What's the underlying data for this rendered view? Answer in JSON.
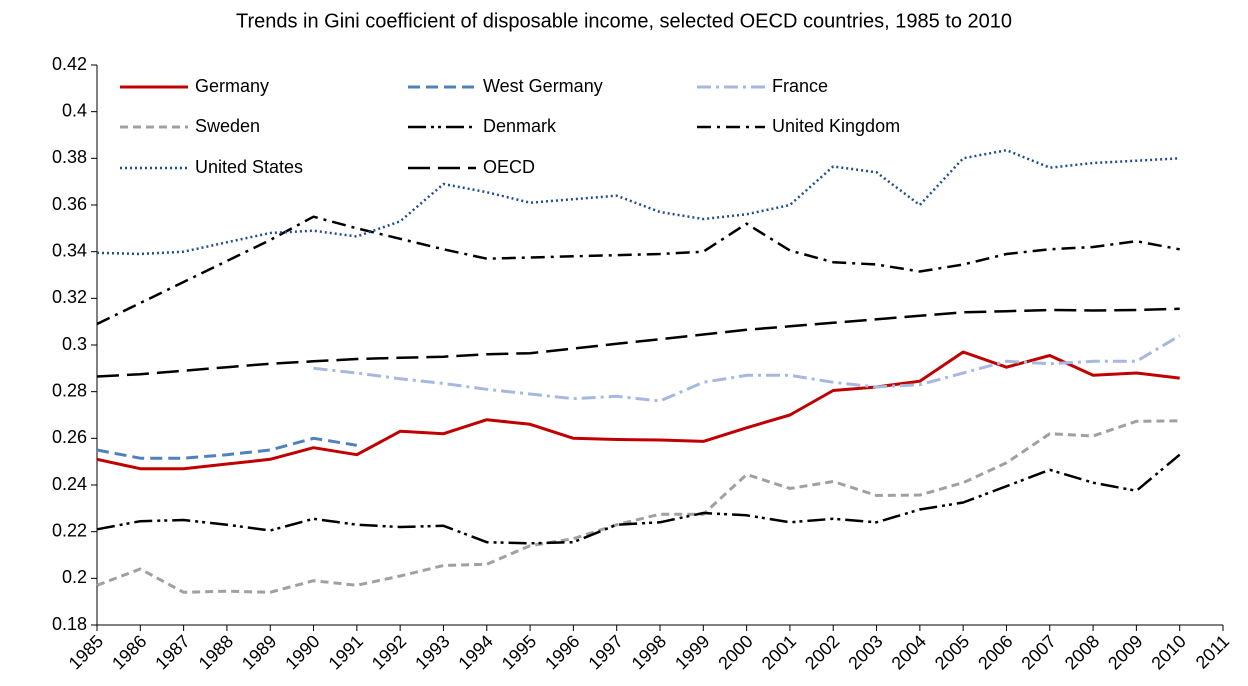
{
  "chart_data": {
    "type": "line",
    "title": "Trends in Gini coefficient of disposable income, selected OECD countries, 1985 to 2010",
    "x": [
      1985,
      1986,
      1987,
      1988,
      1989,
      1990,
      1991,
      1992,
      1993,
      1994,
      1995,
      1996,
      1997,
      1998,
      1999,
      2000,
      2001,
      2002,
      2003,
      2004,
      2005,
      2006,
      2007,
      2008,
      2009,
      2010
    ],
    "xlim": [
      1985,
      2011
    ],
    "xticks": [
      1985,
      1986,
      1987,
      1988,
      1989,
      1990,
      1991,
      1992,
      1993,
      1994,
      1995,
      1996,
      1997,
      1998,
      1999,
      2000,
      2001,
      2002,
      2003,
      2004,
      2005,
      2006,
      2007,
      2008,
      2009,
      2010,
      2011
    ],
    "ylim": [
      0.18,
      0.42
    ],
    "yticks": [
      0.18,
      0.2,
      0.22,
      0.24,
      0.26,
      0.28,
      0.3,
      0.32,
      0.34,
      0.36,
      0.38,
      0.4,
      0.42
    ],
    "grid": false,
    "legend": "top-left",
    "series": [
      {
        "name": "Germany",
        "color": "#c00000",
        "values": [
          0.251,
          0.247,
          0.247,
          0.249,
          0.251,
          0.256,
          0.253,
          0.263,
          0.262,
          0.268,
          0.266,
          0.26,
          0.2595,
          0.2593,
          0.2587,
          0.2645,
          0.27,
          0.2805,
          0.282,
          0.2845,
          0.297,
          0.2905,
          0.2955,
          0.287,
          0.288,
          0.2858
        ]
      },
      {
        "name": "West Germany",
        "color": "#4f81bd",
        "values": [
          0.255,
          0.2515,
          0.2515,
          0.253,
          0.255,
          0.26,
          0.257,
          null,
          null,
          null,
          null,
          null,
          null,
          null,
          null,
          null,
          null,
          null,
          null,
          null,
          null,
          null,
          null,
          null,
          null,
          null
        ]
      },
      {
        "name": "France",
        "color": "#a6b8e0",
        "values": [
          null,
          null,
          null,
          null,
          null,
          0.29,
          0.288,
          0.2855,
          0.2835,
          0.281,
          0.279,
          0.277,
          0.278,
          0.276,
          0.284,
          0.287,
          0.287,
          0.284,
          0.282,
          0.283,
          0.288,
          0.293,
          0.292,
          0.293,
          0.293,
          0.304
        ]
      },
      {
        "name": "Sweden",
        "color": "#a0a0a0",
        "values": [
          0.197,
          0.204,
          0.194,
          0.1945,
          0.194,
          0.199,
          0.197,
          0.201,
          0.2055,
          0.206,
          0.214,
          0.217,
          0.223,
          0.2275,
          0.2275,
          0.2445,
          0.2385,
          0.2415,
          0.2355,
          0.2357,
          0.241,
          0.2495,
          0.262,
          0.261,
          0.2673,
          0.2675
        ]
      },
      {
        "name": "Denmark",
        "color": "#000000",
        "values": [
          0.221,
          0.2245,
          0.225,
          0.223,
          0.2205,
          0.2255,
          0.223,
          0.222,
          0.2225,
          0.2155,
          0.215,
          0.2155,
          0.223,
          0.224,
          0.228,
          0.227,
          0.224,
          0.2255,
          0.224,
          0.2295,
          0.2325,
          0.2395,
          0.2465,
          0.241,
          0.2375,
          0.253
        ]
      },
      {
        "name": "United Kingdom",
        "color": "#000000",
        "values": [
          0.309,
          0.318,
          0.327,
          0.336,
          0.345,
          0.355,
          0.35,
          0.3455,
          0.341,
          0.337,
          0.3375,
          0.338,
          0.3385,
          0.339,
          0.34,
          0.352,
          0.3405,
          0.3355,
          0.3345,
          0.3315,
          0.3345,
          0.339,
          0.341,
          0.342,
          0.3445,
          0.341
        ]
      },
      {
        "name": "United States",
        "color": "#1f4e8c",
        "values": [
          0.3395,
          0.339,
          0.34,
          0.344,
          0.348,
          0.349,
          0.3465,
          0.353,
          0.369,
          0.3655,
          0.361,
          0.3625,
          0.364,
          0.357,
          0.354,
          0.356,
          0.36,
          0.3765,
          0.374,
          0.36,
          0.38,
          0.3835,
          0.376,
          0.378,
          0.379,
          0.38
        ]
      },
      {
        "name": "OECD",
        "color": "#000000",
        "values": [
          0.2865,
          0.2875,
          0.289,
          0.2905,
          0.292,
          0.293,
          0.294,
          0.2945,
          0.295,
          0.296,
          0.2965,
          0.2985,
          0.3005,
          0.3025,
          0.3045,
          0.3065,
          0.308,
          0.3095,
          0.311,
          0.3125,
          0.314,
          0.3145,
          0.315,
          0.3148,
          0.315,
          0.3155
        ]
      }
    ]
  }
}
